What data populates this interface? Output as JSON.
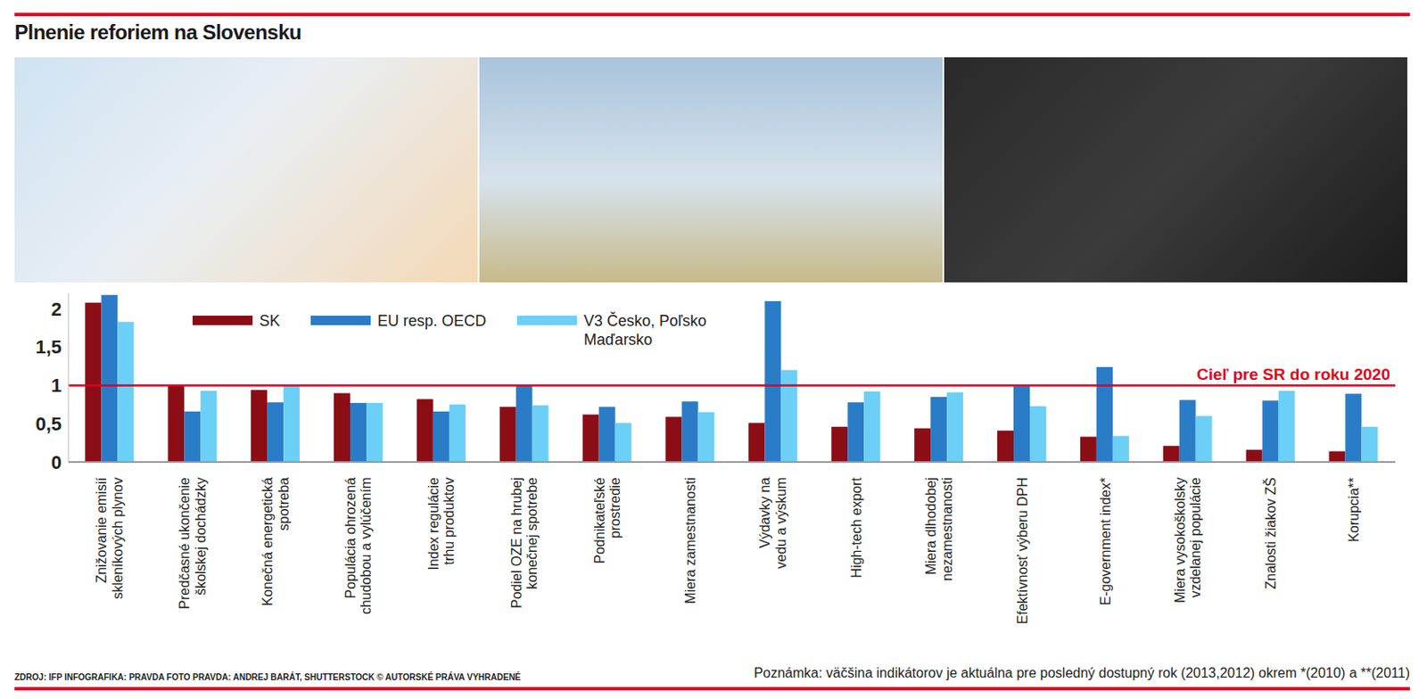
{
  "chart_data": {
    "type": "bar",
    "title": "Plnenie reforiem na Slovensku",
    "categories": [
      "Znižovanie emisií skleníkových plynov",
      "Predčasné ukončenie školskej dochádzky",
      "Konečná energetická spotreba",
      "Populácia ohrozená chudobou a vylúčením",
      "Index regulácie trhu produktov",
      "Podiel OZE na hrubej konečnej spotrebe",
      "Podnikateľské prostredie",
      "Miera zamestnanosti",
      "Výdavky na vedu a výskum",
      "High-tech export",
      "Miera dlhodobej nezamestnanosti",
      "Efektívnosť výberu DPH",
      "E-government index*",
      "Miera vysokoškolsky vzdelanej populácie",
      "Znalosti žiakov ZŠ",
      "Korupcia**"
    ],
    "series": [
      {
        "name": "SK",
        "color": "#8b0d16",
        "values": [
          2.08,
          1.0,
          0.94,
          0.9,
          0.82,
          0.72,
          0.62,
          0.59,
          0.51,
          0.46,
          0.44,
          0.41,
          0.33,
          0.21,
          0.16,
          0.14
        ]
      },
      {
        "name": "EU resp. OECD",
        "color": "#2a7cc7",
        "values": [
          2.18,
          0.66,
          0.78,
          0.77,
          0.66,
          1.0,
          0.72,
          0.79,
          2.1,
          0.78,
          0.85,
          0.99,
          1.24,
          0.81,
          0.8,
          0.89
        ]
      },
      {
        "name": "V3 Česko, Poľsko Maďarsko",
        "color": "#6ccff6",
        "values": [
          1.83,
          0.93,
          0.99,
          0.77,
          0.75,
          0.74,
          0.51,
          0.65,
          1.2,
          0.92,
          0.91,
          0.73,
          0.34,
          0.6,
          0.93,
          0.46
        ]
      }
    ],
    "ylim": [
      0,
      2.2
    ],
    "yticks": [
      0,
      {
        "value": 0.5,
        "label": "0,5"
      },
      1,
      {
        "value": 1.5,
        "label": "1,5"
      },
      2
    ],
    "grid": false,
    "legend": "top-left",
    "annotations": [
      {
        "text": "Cieľ pre SR do roku 2020",
        "y": 1,
        "color": "#e3001b"
      }
    ],
    "source": "ZDROJ: IFP INFOGRAFIKA: PRAVDA  FOTO PRAVDA: ANDREJ BARÁT, SHUTTERSTOCK © AUTORSKÉ PRÁVA VYHRADENÉ",
    "note": "Poznámka: väčšina indikátorov je aktuálna pre posledný dostupný rok (2013,2012) okrem *(2010) a **(2011)"
  }
}
